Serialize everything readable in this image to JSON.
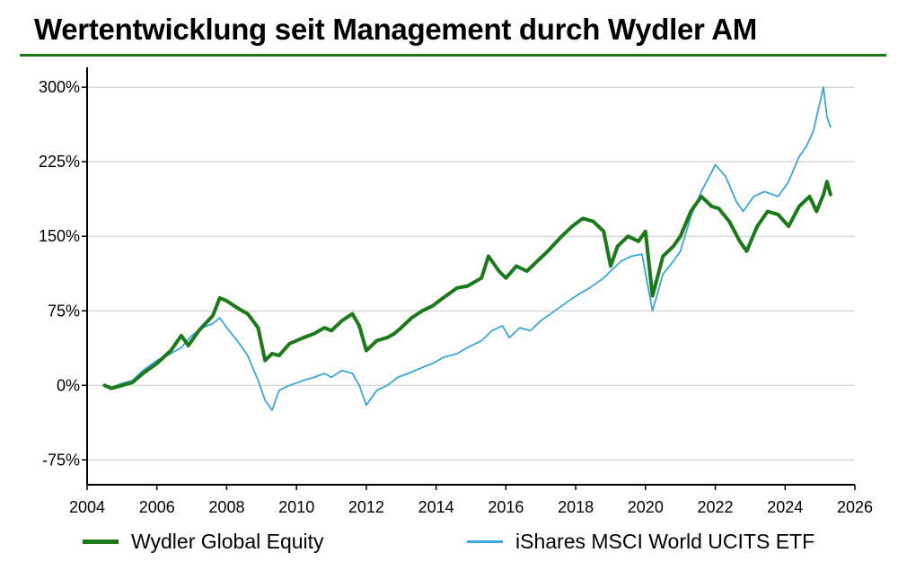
{
  "chart_data": {
    "type": "line",
    "title": "Wertentwicklung seit Management durch Wydler AM",
    "xlabel": "",
    "ylabel": "",
    "xlim": [
      2004,
      2026
    ],
    "ylim": [
      -100,
      320
    ],
    "x_ticks": [
      2004,
      2006,
      2008,
      2010,
      2012,
      2014,
      2016,
      2018,
      2020,
      2022,
      2024,
      2026
    ],
    "y_ticks": [
      -75,
      0,
      75,
      150,
      225,
      300
    ],
    "y_tick_labels": [
      "-75%",
      "0%",
      "75%",
      "150%",
      "225%",
      "300%"
    ],
    "grid": "horizontal",
    "legend_position": "bottom",
    "series": [
      {
        "name": "Wydler Global Equity",
        "color": "#1a7a1a",
        "points": [
          [
            2004.5,
            0
          ],
          [
            2004.7,
            -3
          ],
          [
            2005.0,
            0
          ],
          [
            2005.3,
            3
          ],
          [
            2005.6,
            12
          ],
          [
            2006.0,
            22
          ],
          [
            2006.4,
            35
          ],
          [
            2006.7,
            50
          ],
          [
            2006.9,
            40
          ],
          [
            2007.2,
            55
          ],
          [
            2007.6,
            70
          ],
          [
            2007.8,
            88
          ],
          [
            2008.0,
            85
          ],
          [
            2008.3,
            78
          ],
          [
            2008.6,
            72
          ],
          [
            2008.9,
            58
          ],
          [
            2009.1,
            25
          ],
          [
            2009.3,
            32
          ],
          [
            2009.5,
            30
          ],
          [
            2009.8,
            42
          ],
          [
            2010.2,
            48
          ],
          [
            2010.5,
            52
          ],
          [
            2010.8,
            58
          ],
          [
            2011.0,
            55
          ],
          [
            2011.3,
            65
          ],
          [
            2011.6,
            72
          ],
          [
            2011.8,
            60
          ],
          [
            2012.0,
            35
          ],
          [
            2012.3,
            45
          ],
          [
            2012.6,
            48
          ],
          [
            2012.8,
            52
          ],
          [
            2013.0,
            58
          ],
          [
            2013.3,
            68
          ],
          [
            2013.6,
            75
          ],
          [
            2013.9,
            80
          ],
          [
            2014.2,
            88
          ],
          [
            2014.6,
            98
          ],
          [
            2014.9,
            100
          ],
          [
            2015.3,
            108
          ],
          [
            2015.5,
            130
          ],
          [
            2015.8,
            115
          ],
          [
            2016.0,
            108
          ],
          [
            2016.3,
            120
          ],
          [
            2016.6,
            115
          ],
          [
            2016.9,
            125
          ],
          [
            2017.2,
            135
          ],
          [
            2017.6,
            150
          ],
          [
            2017.9,
            160
          ],
          [
            2018.2,
            168
          ],
          [
            2018.5,
            165
          ],
          [
            2018.8,
            155
          ],
          [
            2019.0,
            120
          ],
          [
            2019.2,
            140
          ],
          [
            2019.5,
            150
          ],
          [
            2019.8,
            145
          ],
          [
            2020.0,
            155
          ],
          [
            2020.2,
            90
          ],
          [
            2020.5,
            130
          ],
          [
            2020.8,
            140
          ],
          [
            2021.0,
            150
          ],
          [
            2021.3,
            175
          ],
          [
            2021.6,
            190
          ],
          [
            2021.9,
            180
          ],
          [
            2022.1,
            178
          ],
          [
            2022.4,
            165
          ],
          [
            2022.7,
            145
          ],
          [
            2022.9,
            135
          ],
          [
            2023.2,
            160
          ],
          [
            2023.5,
            175
          ],
          [
            2023.8,
            172
          ],
          [
            2024.1,
            160
          ],
          [
            2024.4,
            180
          ],
          [
            2024.7,
            190
          ],
          [
            2024.9,
            175
          ],
          [
            2025.1,
            192
          ],
          [
            2025.2,
            205
          ],
          [
            2025.3,
            192
          ]
        ]
      },
      {
        "name": "iShares MSCI World UCITS ETF",
        "color": "#3aa6dd",
        "points": [
          [
            2004.5,
            0
          ],
          [
            2004.7,
            -2
          ],
          [
            2005.0,
            2
          ],
          [
            2005.3,
            5
          ],
          [
            2005.6,
            15
          ],
          [
            2006.0,
            25
          ],
          [
            2006.4,
            32
          ],
          [
            2006.7,
            38
          ],
          [
            2007.0,
            50
          ],
          [
            2007.3,
            58
          ],
          [
            2007.6,
            62
          ],
          [
            2007.8,
            68
          ],
          [
            2008.0,
            58
          ],
          [
            2008.3,
            45
          ],
          [
            2008.6,
            30
          ],
          [
            2008.9,
            5
          ],
          [
            2009.1,
            -15
          ],
          [
            2009.3,
            -25
          ],
          [
            2009.5,
            -5
          ],
          [
            2009.8,
            0
          ],
          [
            2010.2,
            5
          ],
          [
            2010.5,
            8
          ],
          [
            2010.8,
            12
          ],
          [
            2011.0,
            8
          ],
          [
            2011.3,
            15
          ],
          [
            2011.6,
            12
          ],
          [
            2011.8,
            0
          ],
          [
            2012.0,
            -20
          ],
          [
            2012.3,
            -5
          ],
          [
            2012.6,
            0
          ],
          [
            2012.9,
            8
          ],
          [
            2013.2,
            12
          ],
          [
            2013.6,
            18
          ],
          [
            2013.9,
            22
          ],
          [
            2014.2,
            28
          ],
          [
            2014.6,
            32
          ],
          [
            2014.9,
            38
          ],
          [
            2015.3,
            45
          ],
          [
            2015.6,
            55
          ],
          [
            2015.9,
            60
          ],
          [
            2016.1,
            48
          ],
          [
            2016.4,
            58
          ],
          [
            2016.7,
            55
          ],
          [
            2017.0,
            65
          ],
          [
            2017.4,
            75
          ],
          [
            2017.8,
            85
          ],
          [
            2018.1,
            92
          ],
          [
            2018.4,
            98
          ],
          [
            2018.8,
            108
          ],
          [
            2019.0,
            115
          ],
          [
            2019.3,
            125
          ],
          [
            2019.6,
            130
          ],
          [
            2019.9,
            132
          ],
          [
            2020.2,
            75
          ],
          [
            2020.5,
            112
          ],
          [
            2020.8,
            125
          ],
          [
            2021.0,
            135
          ],
          [
            2021.3,
            170
          ],
          [
            2021.6,
            195
          ],
          [
            2021.9,
            215
          ],
          [
            2022.0,
            222
          ],
          [
            2022.3,
            210
          ],
          [
            2022.6,
            185
          ],
          [
            2022.8,
            175
          ],
          [
            2023.1,
            190
          ],
          [
            2023.4,
            195
          ],
          [
            2023.8,
            190
          ],
          [
            2024.1,
            205
          ],
          [
            2024.4,
            230
          ],
          [
            2024.6,
            240
          ],
          [
            2024.8,
            255
          ],
          [
            2025.0,
            285
          ],
          [
            2025.1,
            300
          ],
          [
            2025.2,
            270
          ],
          [
            2025.3,
            260
          ]
        ]
      }
    ]
  }
}
